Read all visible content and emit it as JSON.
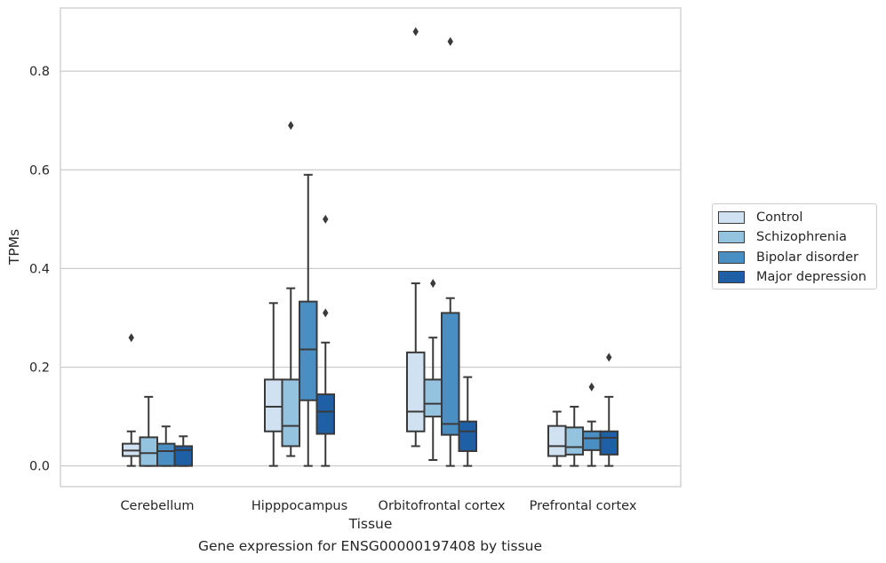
{
  "caption": "Gene expression for ENSG00000197408 by tissue",
  "colors": {
    "Control": "#d0e2f2",
    "Schizophrenia": "#93c3df",
    "Bipolar disorder": "#4a8fc4",
    "Major depression": "#1f5fa6",
    "grid": "#cccccc",
    "box_edge": "#3a3a3a"
  },
  "chart_data": {
    "type": "box",
    "title": "",
    "xlabel": "Tissue",
    "ylabel": "TPMs",
    "ylim": [
      -0.042,
      0.928
    ],
    "yticks": [
      0.0,
      0.2,
      0.4,
      0.6,
      0.8
    ],
    "ytick_labels": [
      "0.0",
      "0.2",
      "0.4",
      "0.6",
      "0.8"
    ],
    "grid": "horizontal",
    "legend_position": "right",
    "categories": [
      "Cerebellum",
      "Hipppocampus",
      "Orbitofrontal cortex",
      "Prefrontal cortex"
    ],
    "series": [
      {
        "name": "Control",
        "boxes": [
          {
            "whislo": 0.0,
            "q1": 0.02,
            "med": 0.031,
            "q3": 0.045,
            "whishi": 0.07,
            "fliers": [
              0.26
            ]
          },
          {
            "whislo": 0.0,
            "q1": 0.07,
            "med": 0.12,
            "q3": 0.175,
            "whishi": 0.33,
            "fliers": []
          },
          {
            "whislo": 0.04,
            "q1": 0.07,
            "med": 0.11,
            "q3": 0.23,
            "whishi": 0.37,
            "fliers": [
              0.88
            ]
          },
          {
            "whislo": 0.0,
            "q1": 0.02,
            "med": 0.04,
            "q3": 0.081,
            "whishi": 0.11,
            "fliers": []
          }
        ]
      },
      {
        "name": "Schizophrenia",
        "boxes": [
          {
            "whislo": 0.0,
            "q1": 0.0,
            "med": 0.026,
            "q3": 0.058,
            "whishi": 0.14,
            "fliers": []
          },
          {
            "whislo": 0.02,
            "q1": 0.04,
            "med": 0.081,
            "q3": 0.175,
            "whishi": 0.36,
            "fliers": [
              0.69
            ]
          },
          {
            "whislo": 0.012,
            "q1": 0.1,
            "med": 0.126,
            "q3": 0.175,
            "whishi": 0.26,
            "fliers": [
              0.37
            ]
          },
          {
            "whislo": 0.0,
            "q1": 0.023,
            "med": 0.038,
            "q3": 0.078,
            "whishi": 0.12,
            "fliers": []
          }
        ]
      },
      {
        "name": "Bipolar disorder",
        "boxes": [
          {
            "whislo": 0.0,
            "q1": 0.0,
            "med": 0.03,
            "q3": 0.045,
            "whishi": 0.08,
            "fliers": []
          },
          {
            "whislo": 0.0,
            "q1": 0.133,
            "med": 0.236,
            "q3": 0.333,
            "whishi": 0.59,
            "fliers": []
          },
          {
            "whislo": 0.0,
            "q1": 0.063,
            "med": 0.085,
            "q3": 0.31,
            "whishi": 0.34,
            "fliers": [
              0.86
            ]
          },
          {
            "whislo": 0.0,
            "q1": 0.032,
            "med": 0.056,
            "q3": 0.07,
            "whishi": 0.09,
            "fliers": [
              0.16
            ]
          }
        ]
      },
      {
        "name": "Major depression",
        "boxes": [
          {
            "whislo": 0.0,
            "q1": 0.0,
            "med": 0.032,
            "q3": 0.04,
            "whishi": 0.06,
            "fliers": []
          },
          {
            "whislo": 0.0,
            "q1": 0.065,
            "med": 0.11,
            "q3": 0.145,
            "whishi": 0.25,
            "fliers": [
              0.5,
              0.31
            ]
          },
          {
            "whislo": 0.0,
            "q1": 0.03,
            "med": 0.07,
            "q3": 0.09,
            "whishi": 0.18,
            "fliers": []
          },
          {
            "whislo": 0.0,
            "q1": 0.023,
            "med": 0.057,
            "q3": 0.07,
            "whishi": 0.14,
            "fliers": [
              0.22
            ]
          }
        ]
      }
    ]
  }
}
